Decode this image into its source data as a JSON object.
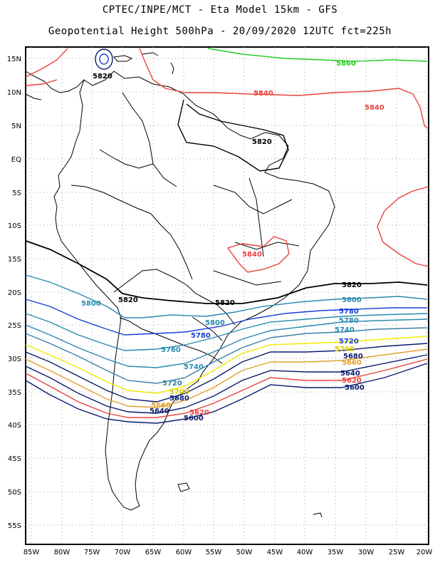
{
  "title": {
    "line1": "CPTEC/INPE/MCT  -  Eta Model 15km  - GFS",
    "line2": "Geopotential Height 500hPa - 20/09/2020 12UTC fct=225h"
  },
  "axes": {
    "lat_labels": [
      "15N",
      "10N",
      "5N",
      "EQ",
      "5S",
      "10S",
      "15S",
      "20S",
      "25S",
      "30S",
      "35S",
      "40S",
      "45S",
      "50S",
      "55S"
    ],
    "lon_labels": [
      "85W",
      "80W",
      "75W",
      "70W",
      "65W",
      "60W",
      "55W",
      "50W",
      "45W",
      "40W",
      "35W",
      "30W",
      "25W",
      "20W"
    ]
  },
  "colors": {
    "c5800": "#0a1a6e",
    "c5820": "#e8433c",
    "c5640_red": "#e8433c",
    "c5660_green": "#22cc22",
    "blue": "#1a3fd6",
    "teal": "#2a8ab0",
    "yellow": "#f2ea00",
    "orange": "#e0a030",
    "black": "#000000",
    "coast": "#000000",
    "grid": "#777777"
  },
  "contour_labels": [
    {
      "text": "5860",
      "color": "green"
    },
    {
      "text": "5840",
      "color": "red"
    },
    {
      "text": "5840",
      "color": "red"
    },
    {
      "text": "5820",
      "color": "black"
    },
    {
      "text": "5820",
      "color": "black"
    },
    {
      "text": "5840",
      "color": "red"
    },
    {
      "text": "5820",
      "color": "black"
    },
    {
      "text": "5820",
      "color": "black"
    },
    {
      "text": "5820",
      "color": "black"
    },
    {
      "text": "5800",
      "color": "teal"
    },
    {
      "text": "5800",
      "color": "teal"
    },
    {
      "text": "5800",
      "color": "teal"
    },
    {
      "text": "5780",
      "color": "blue"
    },
    {
      "text": "5780",
      "color": "blue"
    },
    {
      "text": "5780",
      "color": "teal"
    },
    {
      "text": "5760",
      "color": "teal"
    },
    {
      "text": "5740",
      "color": "teal"
    },
    {
      "text": "5740",
      "color": "teal"
    },
    {
      "text": "5720",
      "color": "teal"
    },
    {
      "text": "5720",
      "color": "blue"
    },
    {
      "text": "5700",
      "color": "yellow"
    },
    {
      "text": "5700",
      "color": "yellow"
    },
    {
      "text": "5680",
      "color": "navy"
    },
    {
      "text": "5680",
      "color": "navy"
    },
    {
      "text": "5660",
      "color": "orange"
    },
    {
      "text": "5660",
      "color": "orange"
    },
    {
      "text": "5640",
      "color": "navy"
    },
    {
      "text": "5640",
      "color": "navy"
    },
    {
      "text": "5620",
      "color": "red"
    },
    {
      "text": "5620",
      "color": "red"
    },
    {
      "text": "5600",
      "color": "navy"
    },
    {
      "text": "5600",
      "color": "navy"
    }
  ]
}
